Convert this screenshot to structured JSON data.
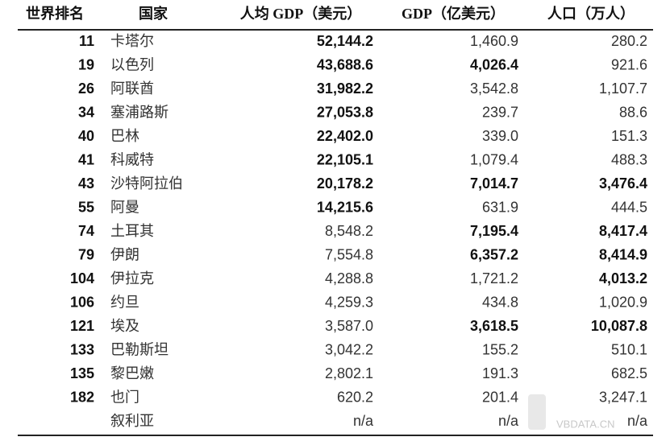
{
  "table": {
    "header": [
      "世界排名",
      "国家",
      "人均 GDP（美元）",
      "GDP（亿美元）",
      "人口（万人）"
    ],
    "rows": [
      [
        "11",
        "卡塔尔",
        "52,144.2",
        "1,460.9",
        "280.2"
      ],
      [
        "19",
        "以色列",
        "43,688.6",
        "4,026.4",
        "921.6"
      ],
      [
        "26",
        "阿联酋",
        "31,982.2",
        "3,542.8",
        "1,107.7"
      ],
      [
        "34",
        "塞浦路斯",
        "27,053.8",
        "239.7",
        "88.6"
      ],
      [
        "40",
        "巴林",
        "22,402.0",
        "339.0",
        "151.3"
      ],
      [
        "41",
        "科威特",
        "22,105.1",
        "1,079.4",
        "488.3"
      ],
      [
        "43",
        "沙特阿拉伯",
        "20,178.2",
        "7,014.7",
        "3,476.4"
      ],
      [
        "55",
        "阿曼",
        "14,215.6",
        "631.9",
        "444.5"
      ],
      [
        "74",
        "土耳其",
        "8,548.2",
        "7,195.4",
        "8,417.4"
      ],
      [
        "79",
        "伊朗",
        "7,554.8",
        "6,357.2",
        "8,414.9"
      ],
      [
        "104",
        "伊拉克",
        "4,288.8",
        "1,721.2",
        "4,013.2"
      ],
      [
        "106",
        "约旦",
        "4,259.3",
        "434.8",
        "1,020.9"
      ],
      [
        "121",
        "埃及",
        "3,587.0",
        "3,618.5",
        "10,087.8"
      ],
      [
        "133",
        "巴勒斯坦",
        "3,042.2",
        "155.2",
        "510.1"
      ],
      [
        "135",
        "黎巴嫩",
        "2,802.1",
        "191.3",
        "682.5"
      ],
      [
        "182",
        "也门",
        "620.2",
        "201.4",
        "3,247.1"
      ],
      [
        "",
        "叙利亚",
        "n/a",
        "n/a",
        "n/a"
      ]
    ]
  },
  "watermark": "VBDATA.CN"
}
